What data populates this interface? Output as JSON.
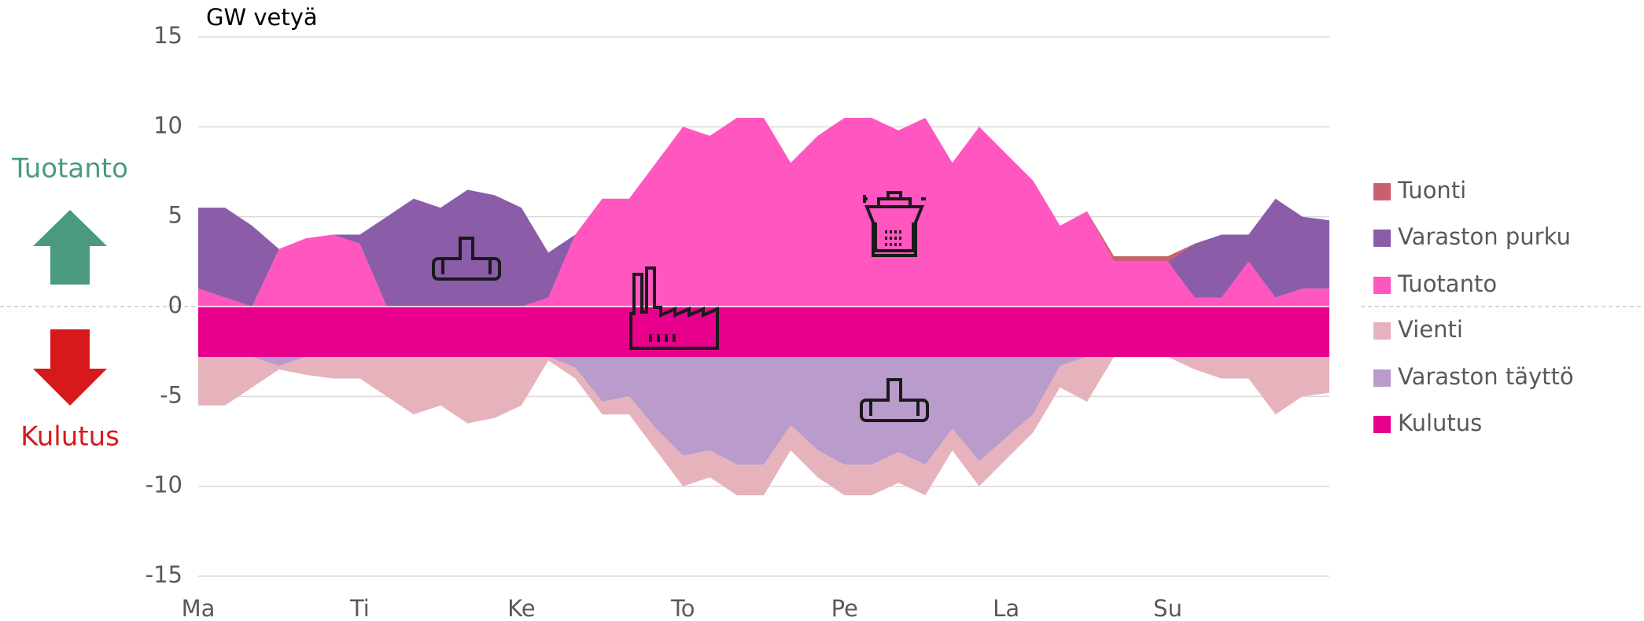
{
  "chart_data": {
    "type": "area",
    "title": "GW vetyä",
    "x": [
      0,
      4,
      8,
      12,
      16,
      20,
      24,
      28,
      32,
      36,
      40,
      44,
      48,
      52,
      56,
      60,
      64,
      68,
      72,
      76,
      80,
      84,
      88,
      92,
      96,
      100,
      104,
      108,
      112,
      116,
      120,
      124,
      128,
      132,
      136,
      140,
      144,
      148,
      152,
      156,
      160,
      164,
      168
    ],
    "xlim": [
      0,
      168
    ],
    "xticks": [
      {
        "value": 0,
        "label": "Ma"
      },
      {
        "value": 24,
        "label": "Ti"
      },
      {
        "value": 48,
        "label": "Ke"
      },
      {
        "value": 72,
        "label": "To"
      },
      {
        "value": 96,
        "label": "Pe"
      },
      {
        "value": 120,
        "label": "La"
      },
      {
        "value": 144,
        "label": "Su"
      }
    ],
    "ylim": [
      -15,
      15
    ],
    "yticks": [
      15,
      10,
      5,
      0,
      -5,
      -10,
      -15
    ],
    "grid": true,
    "stacked": true,
    "legend": "right",
    "annotations": {
      "up": "Tuotanto",
      "down": "Kulutus"
    },
    "series": [
      {
        "name": "Tuonti",
        "color": "#c9606e",
        "values": [
          0,
          0,
          0,
          0,
          0,
          0,
          0,
          0,
          0,
          0,
          0,
          0,
          0,
          0,
          0,
          0,
          0,
          0,
          0,
          0,
          0,
          0,
          0,
          0,
          0,
          0,
          0,
          0,
          0,
          0,
          0,
          0,
          0,
          0,
          0.3,
          0.3,
          0.3,
          0,
          0,
          0,
          0,
          0,
          0
        ]
      },
      {
        "name": "Varaston purku",
        "color": "#8b5ca8",
        "values": [
          4.5,
          5,
          4.5,
          0,
          0,
          0,
          0.5,
          5,
          6,
          5.5,
          6.5,
          6.2,
          5.5,
          2.5,
          0,
          0,
          0,
          0,
          0,
          0,
          0,
          0,
          0,
          0,
          0,
          0,
          0,
          0,
          0,
          0,
          0,
          0,
          0,
          0,
          0,
          0,
          0,
          3,
          3.5,
          1.5,
          5.5,
          4,
          3.8
        ]
      },
      {
        "name": "Tuotanto",
        "color": "#ff57bf",
        "values": [
          1,
          0.5,
          0,
          3.2,
          3.8,
          4,
          3.5,
          0,
          0,
          0,
          0,
          0,
          0,
          0.5,
          4,
          6,
          6,
          8,
          10,
          9.5,
          10.5,
          10.5,
          8,
          9.5,
          10.5,
          10.5,
          9.8,
          10.5,
          8,
          10,
          8.5,
          7,
          4.5,
          5.3,
          2.5,
          2.5,
          2.5,
          0.5,
          0.5,
          2.5,
          0.5,
          1,
          1
        ]
      },
      {
        "name": "Vienti",
        "color": "#e6b3bd",
        "values": [
          -2.7,
          -2.7,
          -1.7,
          -0.2,
          -1,
          -1.2,
          -1.2,
          -2.2,
          -3.2,
          -2.7,
          -3.7,
          -3.4,
          -2.7,
          -0.2,
          -0.6,
          -0.7,
          -1,
          -1.2,
          -1.7,
          -1.5,
          -1.7,
          -1.7,
          -1.4,
          -1.5,
          -1.7,
          -1.7,
          -1.7,
          -1.7,
          -1.2,
          -1.4,
          -1.2,
          -1,
          -1.2,
          -2.5,
          0,
          0,
          0,
          -0.7,
          -1.2,
          -1.2,
          -3.2,
          -2.2,
          -2
        ]
      },
      {
        "name": "Varaston täyttö",
        "color": "#b99ccb",
        "values": [
          0,
          0,
          0,
          -0.5,
          0,
          0,
          0,
          0,
          0,
          0,
          0,
          0,
          0,
          0,
          -0.6,
          -2.5,
          -2.2,
          -4,
          -5.5,
          -5.2,
          -6,
          -6,
          -3.8,
          -5.2,
          -6,
          -6,
          -5.3,
          -6,
          -4,
          -5.8,
          -4.5,
          -3.2,
          -0.5,
          0,
          0,
          0,
          0,
          0,
          0,
          0,
          0,
          0,
          0
        ]
      },
      {
        "name": "Kulutus",
        "color": "#e8008c",
        "values": [
          -2.8,
          -2.8,
          -2.8,
          -2.8,
          -2.8,
          -2.8,
          -2.8,
          -2.8,
          -2.8,
          -2.8,
          -2.8,
          -2.8,
          -2.8,
          -2.8,
          -2.8,
          -2.8,
          -2.8,
          -2.8,
          -2.8,
          -2.8,
          -2.8,
          -2.8,
          -2.8,
          -2.8,
          -2.8,
          -2.8,
          -2.8,
          -2.8,
          -2.8,
          -2.8,
          -2.8,
          -2.8,
          -2.8,
          -2.8,
          -2.8,
          -2.8,
          -2.8,
          -2.8,
          -2.8,
          -2.8,
          -2.8,
          -2.8,
          -2.8
        ]
      }
    ]
  }
}
